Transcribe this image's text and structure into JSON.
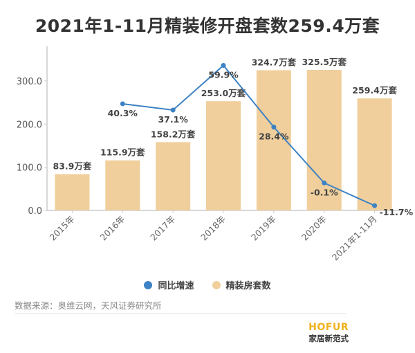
{
  "chart_data": {
    "type": "bar+line",
    "title": "2021年1-11月精装修开盘套数259.4万套",
    "categories": [
      "2015年",
      "2016年",
      "2017年",
      "2018年",
      "2019年",
      "2020年",
      "2021年1-11月"
    ],
    "series": [
      {
        "name": "精装房套数",
        "type": "bar",
        "axis": "left",
        "color": "#f0cf9c",
        "values": [
          83.9,
          115.9,
          158.2,
          253.0,
          324.7,
          325.5,
          259.4
        ],
        "labels": [
          "83.9万套",
          "115.9万套",
          "158.2万套",
          "253.0万套",
          "324.7万套",
          "325.5万套",
          "259.4万套"
        ]
      },
      {
        "name": "同比增速",
        "type": "line",
        "axis": "right-hidden",
        "color": "#3d82c4",
        "values": [
          null,
          40.3,
          37.1,
          59.9,
          28.4,
          -0.1,
          -11.7
        ],
        "labels": [
          "",
          "40.3%",
          "37.1%",
          "59.9%",
          "28.4%",
          "-0.1%",
          "-11.7%"
        ]
      }
    ],
    "y_ticks": [
      "0.0",
      "100.0",
      "200.0",
      "300.0"
    ],
    "y_tick_values": [
      0,
      100,
      200,
      300
    ],
    "ylim": [
      0,
      380
    ],
    "grid": false,
    "legend_position": "bottom"
  },
  "legend": [
    {
      "label": "同比增速",
      "color": "#3d82c4"
    },
    {
      "label": "精装房套数",
      "color": "#f0cf9c"
    }
  ],
  "source": "数据来源：奥维云网，天风证券研究所",
  "logo": {
    "en": "HOFUR",
    "cn": "家居新范式"
  }
}
